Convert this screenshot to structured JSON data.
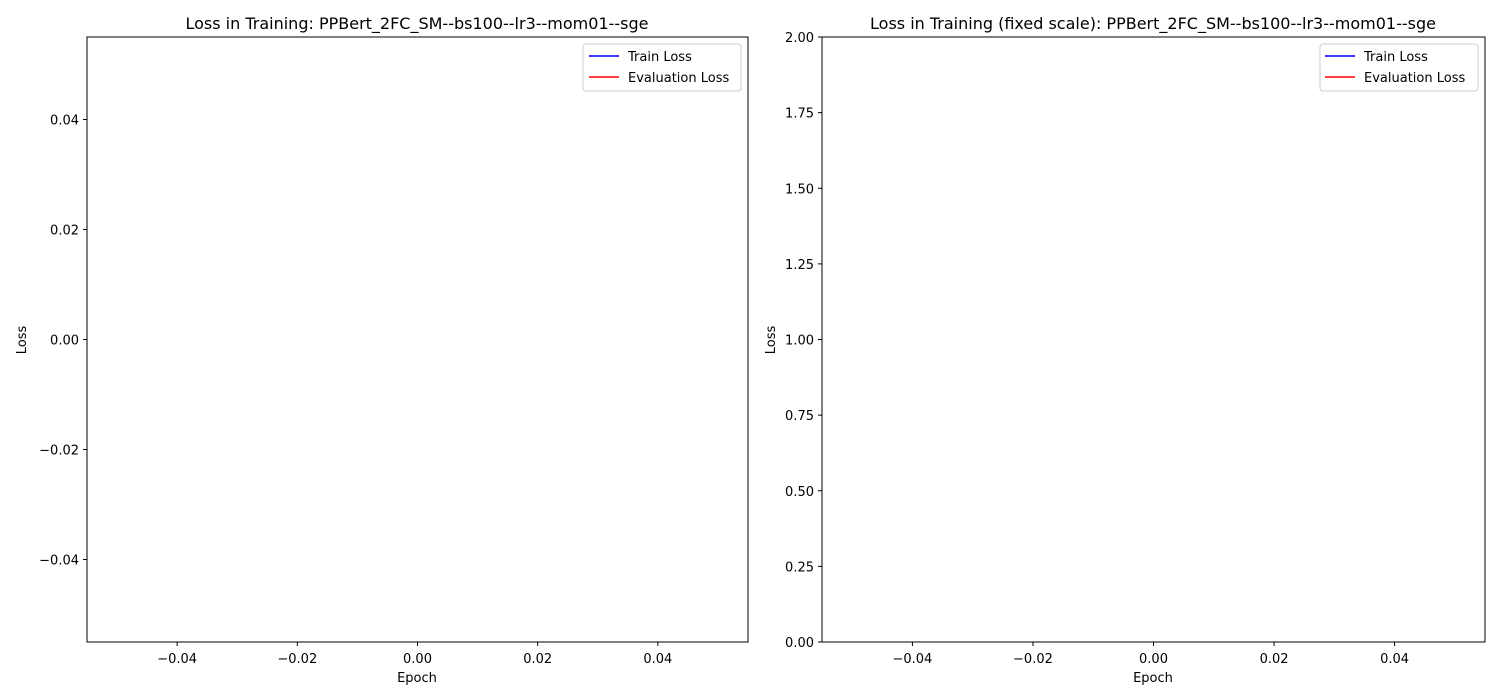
{
  "chart_data": [
    {
      "type": "line",
      "title": "Loss in Training: PPBert_2FC_SM--bs100--lr3--mom01--sge",
      "xlabel": "Epoch",
      "ylabel": "Loss",
      "xlim": [
        -0.055,
        0.055
      ],
      "ylim": [
        -0.055,
        0.055
      ],
      "xticks": [
        -0.04,
        -0.02,
        0.0,
        0.02,
        0.04
      ],
      "xtick_labels": [
        "−0.04",
        "−0.02",
        "0.00",
        "0.02",
        "0.04"
      ],
      "yticks": [
        -0.04,
        -0.02,
        0.0,
        0.02,
        0.04
      ],
      "ytick_labels": [
        "−0.04",
        "−0.02",
        "0.00",
        "0.02",
        "0.04"
      ],
      "grid": false,
      "legend_position": "top-right",
      "series": [
        {
          "name": "Train Loss",
          "color": "#0000ff",
          "x": [],
          "y": []
        },
        {
          "name": "Evaluation Loss",
          "color": "#ff0000",
          "x": [],
          "y": []
        }
      ]
    },
    {
      "type": "line",
      "title": "Loss in Training (fixed scale): PPBert_2FC_SM--bs100--lr3--mom01--sge",
      "xlabel": "Epoch",
      "ylabel": "Loss",
      "xlim": [
        -0.055,
        0.055
      ],
      "ylim": [
        0,
        2
      ],
      "xticks": [
        -0.04,
        -0.02,
        0.0,
        0.02,
        0.04
      ],
      "xtick_labels": [
        "−0.04",
        "−0.02",
        "0.00",
        "0.02",
        "0.04"
      ],
      "yticks": [
        0.0,
        0.25,
        0.5,
        0.75,
        1.0,
        1.25,
        1.5,
        1.75,
        2.0
      ],
      "ytick_labels": [
        "0.00",
        "0.25",
        "0.50",
        "0.75",
        "1.00",
        "1.25",
        "1.50",
        "1.75",
        "2.00"
      ],
      "grid": false,
      "legend_position": "top-right",
      "series": [
        {
          "name": "Train Loss",
          "color": "#0000ff",
          "x": [],
          "y": []
        },
        {
          "name": "Evaluation Loss",
          "color": "#ff0000",
          "x": [],
          "y": []
        }
      ]
    }
  ]
}
